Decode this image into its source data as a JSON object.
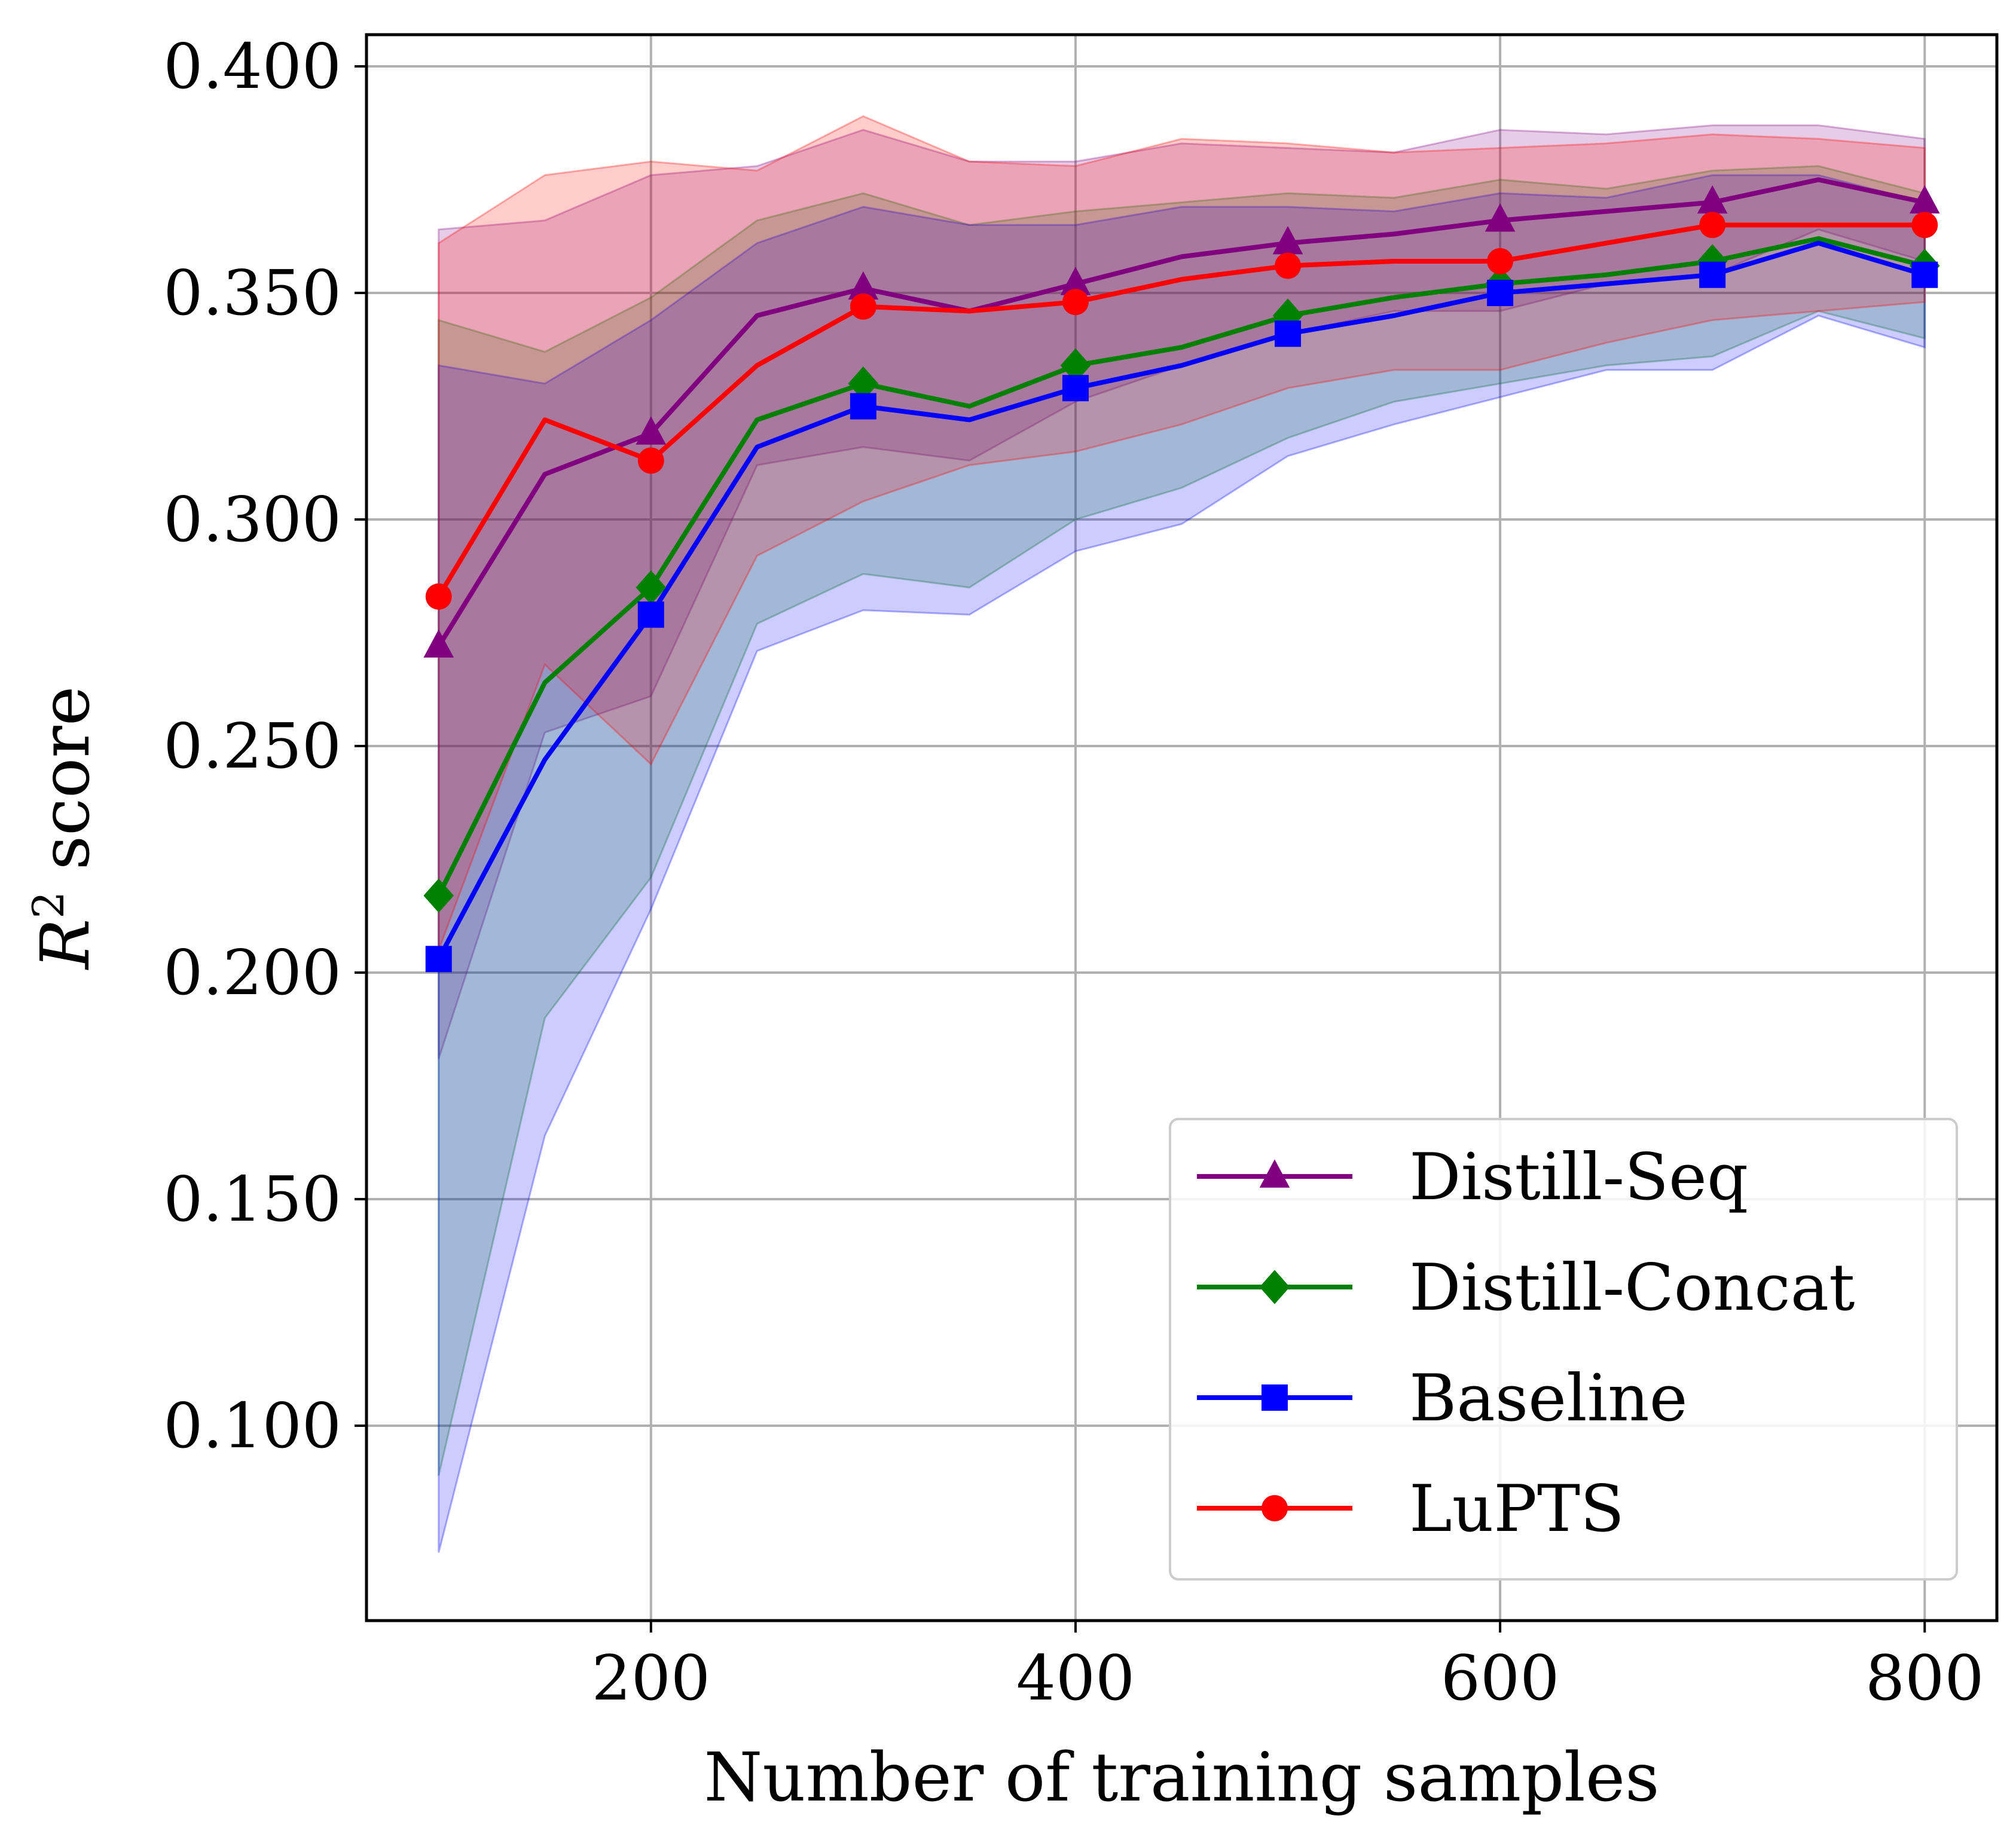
{
  "chart_data": {
    "type": "line",
    "xlabel": "Number of training samples",
    "ylabel_main": "R",
    "ylabel_sup": "2",
    "ylabel_rest": " score",
    "xlim": [
      66,
      834
    ],
    "ylim": [
      0.057,
      0.407
    ],
    "xticks": [
      200,
      400,
      600,
      800
    ],
    "xtick_labels": [
      "200",
      "400",
      "600",
      "800"
    ],
    "yticks": [
      0.1,
      0.15,
      0.2,
      0.25,
      0.3,
      0.35,
      0.4
    ],
    "ytick_labels": [
      "0.100",
      "0.150",
      "0.200",
      "0.250",
      "0.300",
      "0.350",
      "0.400"
    ],
    "grid": true,
    "legend_position": "lower-right",
    "x": [
      100,
      150,
      200,
      250,
      300,
      350,
      400,
      450,
      500,
      550,
      600,
      650,
      700,
      750,
      800
    ],
    "marker_x": [
      100,
      200,
      300,
      400,
      500,
      600,
      700,
      800
    ],
    "series": [
      {
        "name": "Distill-Seq",
        "color": "#800080",
        "marker": "triangle",
        "values": [
          0.272,
          0.31,
          0.319,
          0.345,
          0.351,
          0.346,
          0.352,
          0.358,
          0.361,
          0.363,
          0.366,
          0.368,
          0.37,
          0.375,
          0.37
        ],
        "upper": [
          0.364,
          0.366,
          0.376,
          0.378,
          0.386,
          0.379,
          0.379,
          0.383,
          0.382,
          0.381,
          0.386,
          0.385,
          0.387,
          0.387,
          0.384
        ],
        "lower": [
          0.181,
          0.253,
          0.261,
          0.312,
          0.316,
          0.313,
          0.326,
          0.334,
          0.341,
          0.346,
          0.346,
          0.352,
          0.354,
          0.364,
          0.357
        ]
      },
      {
        "name": "Distill-Concat",
        "color": "#008000",
        "marker": "diamond",
        "values": [
          0.217,
          0.264,
          0.285,
          0.322,
          0.33,
          0.325,
          0.334,
          0.338,
          0.345,
          0.349,
          0.352,
          0.354,
          0.357,
          0.362,
          0.356
        ],
        "upper": [
          0.344,
          0.337,
          0.349,
          0.366,
          0.372,
          0.365,
          0.368,
          0.37,
          0.372,
          0.371,
          0.375,
          0.373,
          0.377,
          0.378,
          0.372
        ],
        "lower": [
          0.089,
          0.19,
          0.221,
          0.277,
          0.288,
          0.285,
          0.3,
          0.307,
          0.318,
          0.326,
          0.33,
          0.334,
          0.336,
          0.346,
          0.34
        ]
      },
      {
        "name": "Baseline",
        "color": "#0000ff",
        "marker": "square",
        "values": [
          0.203,
          0.247,
          0.279,
          0.316,
          0.325,
          0.322,
          0.329,
          0.334,
          0.341,
          0.345,
          0.35,
          0.352,
          0.354,
          0.361,
          0.354
        ],
        "upper": [
          0.334,
          0.33,
          0.344,
          0.361,
          0.369,
          0.365,
          0.365,
          0.369,
          0.369,
          0.368,
          0.372,
          0.371,
          0.376,
          0.376,
          0.37
        ],
        "lower": [
          0.072,
          0.164,
          0.214,
          0.271,
          0.28,
          0.279,
          0.293,
          0.299,
          0.314,
          0.321,
          0.327,
          0.333,
          0.333,
          0.345,
          0.338
        ]
      },
      {
        "name": "LuPTS",
        "color": "#ff0000",
        "marker": "circle",
        "values": [
          0.283,
          0.322,
          0.313,
          0.334,
          0.347,
          0.346,
          0.348,
          0.353,
          0.356,
          0.357,
          0.357,
          0.361,
          0.365,
          0.365,
          0.365
        ],
        "upper": [
          0.361,
          0.376,
          0.379,
          0.377,
          0.389,
          0.379,
          0.378,
          0.384,
          0.383,
          0.381,
          0.382,
          0.383,
          0.385,
          0.384,
          0.382
        ],
        "lower": [
          0.205,
          0.268,
          0.246,
          0.292,
          0.304,
          0.312,
          0.315,
          0.321,
          0.329,
          0.333,
          0.333,
          0.339,
          0.344,
          0.346,
          0.348
        ]
      }
    ],
    "legend_order": [
      "Distill-Seq",
      "Distill-Concat",
      "Baseline",
      "LuPTS"
    ]
  }
}
